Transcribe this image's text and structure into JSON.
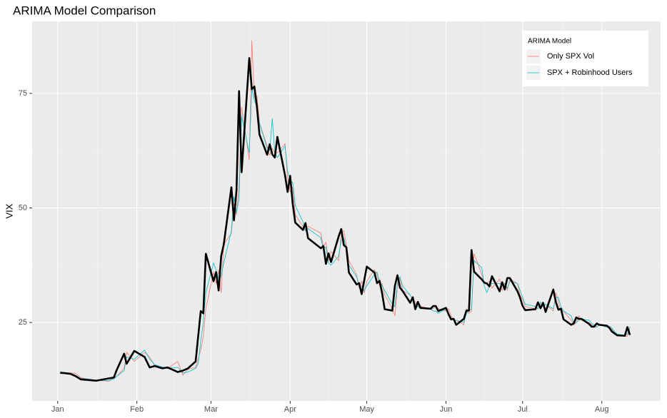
{
  "chart_data": {
    "type": "line",
    "title": "ARIMA Model Comparison",
    "y_label": "VIX",
    "x": [
      2,
      3,
      6,
      8,
      10,
      14,
      16,
      21,
      23,
      24,
      27,
      28,
      31,
      35,
      37,
      39,
      42,
      44,
      48,
      50,
      52,
      55,
      56,
      57,
      58,
      59,
      62,
      63,
      64,
      65,
      66,
      69,
      70,
      71,
      72,
      73,
      76,
      77,
      78,
      79,
      80,
      83,
      84,
      85,
      86,
      87,
      90,
      91,
      92,
      93,
      94,
      97,
      98,
      99,
      104,
      105,
      106,
      107,
      108,
      111,
      112,
      113,
      114,
      115,
      118,
      119,
      120,
      121,
      122,
      125,
      126,
      127,
      128,
      129,
      132,
      133,
      134,
      135,
      136,
      139,
      140,
      141,
      142,
      143,
      147,
      148,
      149,
      150,
      153,
      154,
      155,
      156,
      157,
      160,
      161,
      162,
      163,
      164,
      167,
      168,
      169,
      170,
      171,
      174,
      175,
      176,
      177,
      178,
      181,
      182,
      183,
      184,
      188,
      189,
      190,
      191,
      192,
      195,
      196,
      197,
      198,
      199,
      202,
      203,
      204,
      205,
      206,
      209,
      210,
      211,
      212,
      213,
      216,
      217,
      218,
      219,
      220,
      223,
      224,
      225
    ],
    "xlim": [
      -9,
      237
    ],
    "xticks": [
      {
        "value": 1,
        "label": "Jan"
      },
      {
        "value": 32,
        "label": "Feb"
      },
      {
        "value": 61,
        "label": "Mar"
      },
      {
        "value": 92,
        "label": "Apr"
      },
      {
        "value": 122,
        "label": "May"
      },
      {
        "value": 153,
        "label": "Jun"
      },
      {
        "value": 183,
        "label": "Jul"
      },
      {
        "value": 214,
        "label": "Aug"
      }
    ],
    "ylim": [
      7.9,
      90.7
    ],
    "yticks": [
      25,
      50,
      75
    ],
    "grid": true,
    "legend_title": "ARIMA Model",
    "legend_position": "top-right",
    "series": [
      {
        "name": "Only SPX Vol",
        "color": "#f8766d",
        "line_width": 0.8,
        "values": [
          14.2,
          14.0,
          14.0,
          13.9,
          13.0,
          12.5,
          12.4,
          12.2,
          13.0,
          13.2,
          15.0,
          18.5,
          16.5,
          18.5,
          17.5,
          15.5,
          15.2,
          15.0,
          16.5,
          13.5,
          14.8,
          15.2,
          17.0,
          19.0,
          22.0,
          28.0,
          36.0,
          33.5,
          36.5,
          31.5,
          42.0,
          44.5,
          51.0,
          48.5,
          55.0,
          72.0,
          60.5,
          86.5,
          74.0,
          74.5,
          68.5,
          63.5,
          61.5,
          63.0,
          62.0,
          62.0,
          64.0,
          56.5,
          53.5,
          54.5,
          48.5,
          46.0,
          45.0,
          46.0,
          44.5,
          41.5,
          42.5,
          38.5,
          40.5,
          38.5,
          44.5,
          45.0,
          42.0,
          38.5,
          35.5,
          32.5,
          34.0,
          31.5,
          34.0,
          36.5,
          35.5,
          33.0,
          33.5,
          31.0,
          28.0,
          26.5,
          33.0,
          34.5,
          32.0,
          31.0,
          30.0,
          29.5,
          28.5,
          28.5,
          28.0,
          28.0,
          28.5,
          28.0,
          27.5,
          28.0,
          26.5,
          25.5,
          25.5,
          24.5,
          28.0,
          27.0,
          27.5,
          40.0,
          35.5,
          33.5,
          33.5,
          34.0,
          32.5,
          34.5,
          32.0,
          33.5,
          32.0,
          34.5,
          33.5,
          31.0,
          30.0,
          28.5,
          28.0,
          28.0,
          29.0,
          28.5,
          29.0,
          27.5,
          31.5,
          29.5,
          27.5,
          27.5,
          25.5,
          24.5,
          25.0,
          26.5,
          25.5,
          25.0,
          24.5,
          24.0,
          24.0,
          24.5,
          24.0,
          24.0,
          23.5,
          22.8,
          22.3,
          22.0,
          22.0,
          23.5
        ]
      },
      {
        "name": "SPX + Robinhood Users",
        "color": "#00bfc4",
        "line_width": 0.8,
        "values": [
          14.3,
          14.1,
          13.9,
          13.5,
          12.8,
          12.6,
          12.4,
          12.3,
          12.7,
          13.2,
          14.5,
          17.5,
          17.0,
          19.0,
          17.0,
          15.8,
          15.3,
          15.0,
          15.2,
          14.0,
          14.2,
          15.0,
          16.0,
          21.0,
          25.0,
          31.5,
          38.0,
          36.5,
          34.5,
          35.0,
          38.0,
          45.0,
          52.5,
          49.0,
          52.0,
          70.0,
          62.0,
          76.0,
          73.5,
          72.0,
          68.5,
          63.0,
          62.5,
          69.5,
          62.0,
          61.0,
          63.5,
          58.0,
          56.0,
          55.5,
          50.5,
          47.0,
          45.0,
          45.5,
          43.5,
          41.0,
          41.5,
          38.0,
          37.5,
          39.5,
          43.0,
          43.5,
          41.0,
          37.5,
          35.0,
          33.0,
          33.0,
          32.0,
          33.0,
          35.5,
          36.0,
          34.0,
          33.0,
          32.0,
          29.0,
          28.5,
          33.5,
          35.0,
          33.0,
          31.0,
          30.0,
          29.0,
          28.5,
          28.0,
          28.0,
          27.5,
          27.5,
          27.0,
          28.0,
          26.5,
          26.0,
          25.5,
          25.5,
          25.0,
          27.0,
          27.5,
          28.0,
          38.5,
          37.0,
          33.0,
          31.5,
          33.0,
          33.5,
          33.5,
          33.0,
          33.5,
          32.5,
          34.0,
          33.5,
          32.0,
          30.5,
          29.0,
          28.5,
          28.0,
          29.5,
          28.5,
          29.0,
          28.0,
          30.5,
          30.5,
          28.5,
          27.5,
          26.5,
          24.8,
          25.0,
          25.5,
          25.8,
          25.5,
          24.8,
          24.5,
          24.0,
          24.5,
          24.0,
          24.2,
          23.8,
          23.0,
          22.5,
          22.2,
          22.5,
          24.0
        ]
      },
      {
        "color": "#000000",
        "line_width": 2.6,
        "values": [
          14.0,
          14.0,
          13.8,
          13.3,
          12.6,
          12.4,
          12.3,
          12.8,
          13.0,
          14.5,
          18.2,
          16.0,
          18.8,
          17.5,
          15.2,
          15.5,
          15.0,
          15.2,
          14.2,
          14.5,
          15.0,
          16.5,
          22.0,
          27.5,
          27.0,
          40.0,
          34.0,
          36.0,
          32.0,
          39.5,
          42.0,
          54.5,
          47.3,
          53.9,
          75.5,
          57.8,
          82.7,
          75.9,
          76.5,
          72.0,
          66.0,
          61.6,
          63.9,
          61.7,
          61.0,
          65.5,
          57.1,
          53.5,
          57.0,
          50.9,
          46.8,
          45.2,
          46.7,
          43.4,
          41.2,
          41.7,
          37.8,
          40.1,
          38.2,
          43.8,
          45.4,
          41.9,
          41.4,
          35.9,
          33.3,
          33.6,
          31.2,
          34.2,
          37.2,
          35.9,
          33.6,
          34.1,
          31.4,
          27.9,
          27.6,
          33.0,
          35.3,
          32.6,
          31.9,
          29.3,
          30.5,
          27.9,
          29.5,
          28.2,
          28.0,
          28.6,
          28.6,
          27.5,
          28.2,
          26.8,
          25.7,
          25.8,
          24.5,
          25.8,
          27.6,
          27.6,
          40.8,
          36.1,
          34.4,
          33.7,
          33.5,
          32.9,
          35.1,
          31.8,
          33.8,
          32.2,
          34.7,
          34.7,
          31.8,
          30.4,
          28.6,
          27.7,
          27.9,
          29.4,
          28.1,
          29.3,
          27.3,
          32.2,
          29.5,
          27.8,
          28.0,
          25.7,
          24.5,
          24.8,
          26.1,
          25.8,
          25.8,
          24.7,
          24.1,
          24.1,
          24.8,
          24.5,
          24.3,
          23.8,
          23.0,
          22.6,
          22.2,
          22.1,
          24.0,
          22.3
        ]
      }
    ]
  }
}
